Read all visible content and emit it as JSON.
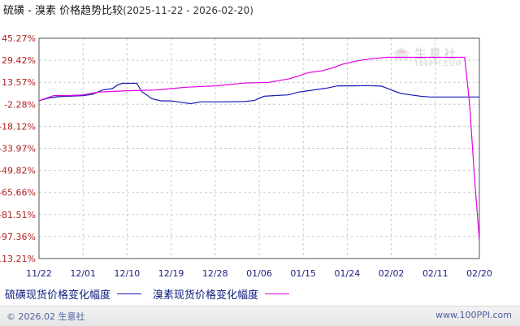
{
  "chart_data": {
    "type": "line",
    "title": "硫磺 - 溴素 价格趋势比较",
    "date_range": "(2025-11-22 - 2026-02-20)",
    "x_tick_labels": [
      "11/22",
      "12/01",
      "12/10",
      "12/19",
      "12/28",
      "01/06",
      "01/15",
      "01/24",
      "02/02",
      "02/11",
      "02/20"
    ],
    "y_tick_labels": [
      "45.27%",
      "29.42%",
      "13.57%",
      "-2.28%",
      "-18.12%",
      "-33.97%",
      "-49.82%",
      "-65.66%",
      "-81.51%",
      "-97.36%",
      "-113.21%"
    ],
    "ylim": [
      -113.21,
      45.27
    ],
    "xlim": [
      "2025-11-22",
      "2026-02-20"
    ],
    "grid": true,
    "legend_position": "bottom-left",
    "series": [
      {
        "name": "硫磺现货价格变化幅度",
        "color": "#1a1ab8",
        "x": [
          "2025-11-22",
          "2025-11-24",
          "2025-11-26",
          "2025-12-01",
          "2025-12-03",
          "2025-12-05",
          "2025-12-07",
          "2025-12-08",
          "2025-12-09",
          "2025-12-10",
          "2025-12-12",
          "2025-12-13",
          "2025-12-14",
          "2025-12-15",
          "2025-12-17",
          "2025-12-19",
          "2025-12-21",
          "2025-12-23",
          "2025-12-25",
          "2025-12-29",
          "2026-01-03",
          "2026-01-05",
          "2026-01-07",
          "2026-01-09",
          "2026-01-12",
          "2026-01-14",
          "2026-01-16",
          "2026-01-18",
          "2026-01-20",
          "2026-01-22",
          "2026-01-25",
          "2026-01-28",
          "2026-01-31",
          "2026-02-02",
          "2026-02-04",
          "2026-02-08",
          "2026-02-10",
          "2026-02-20"
        ],
        "y": [
          0.3,
          2.2,
          3.2,
          4.0,
          5.0,
          8.0,
          9.0,
          11.5,
          12.8,
          12.8,
          12.8,
          6.8,
          4.5,
          1.8,
          0.2,
          0.2,
          -0.8,
          -1.8,
          -0.5,
          -0.5,
          -0.3,
          0.5,
          3.5,
          4.0,
          4.5,
          6.5,
          7.5,
          8.5,
          9.5,
          11.0,
          11.0,
          11.2,
          10.8,
          8.0,
          5.5,
          3.5,
          3.0,
          3.0
        ]
      },
      {
        "name": "溴素现货价格变化幅度",
        "color": "#e100e1",
        "x": [
          "2025-11-22",
          "2025-11-25",
          "2025-11-28",
          "2025-12-01",
          "2025-12-04",
          "2025-12-10",
          "2025-12-16",
          "2025-12-19",
          "2025-12-22",
          "2025-12-28",
          "2026-01-03",
          "2026-01-08",
          "2026-01-12",
          "2026-01-14",
          "2026-01-16",
          "2026-01-19",
          "2026-01-21",
          "2026-01-23",
          "2026-01-26",
          "2026-01-29",
          "2026-02-01",
          "2026-02-04",
          "2026-02-08",
          "2026-02-12",
          "2026-02-17",
          "2026-02-18",
          "2026-02-19",
          "2026-02-20"
        ],
        "y": [
          0.3,
          4.0,
          4.0,
          4.5,
          6.5,
          7.5,
          8.0,
          9.0,
          10.0,
          11.0,
          13.0,
          13.5,
          16.0,
          18.0,
          20.5,
          22.0,
          24.0,
          26.5,
          29.0,
          30.5,
          31.5,
          31.5,
          31.5,
          31.5,
          31.5,
          -2.28,
          -55.0,
          -100.0
        ]
      }
    ]
  },
  "legend": {
    "series1_label": "硫磺现货价格变化幅度",
    "series2_label": "溴素现货价格变化幅度"
  },
  "watermark": {
    "logo_text": "生意社",
    "sub_text": "100PPI.COM"
  },
  "footer": {
    "copyright": "© 2026.02 生意社",
    "url": "www.100PPI.com"
  },
  "colors": {
    "grid": "#cccccc",
    "axis_text": "#b22222",
    "x_tick_text": "#1a237e"
  }
}
